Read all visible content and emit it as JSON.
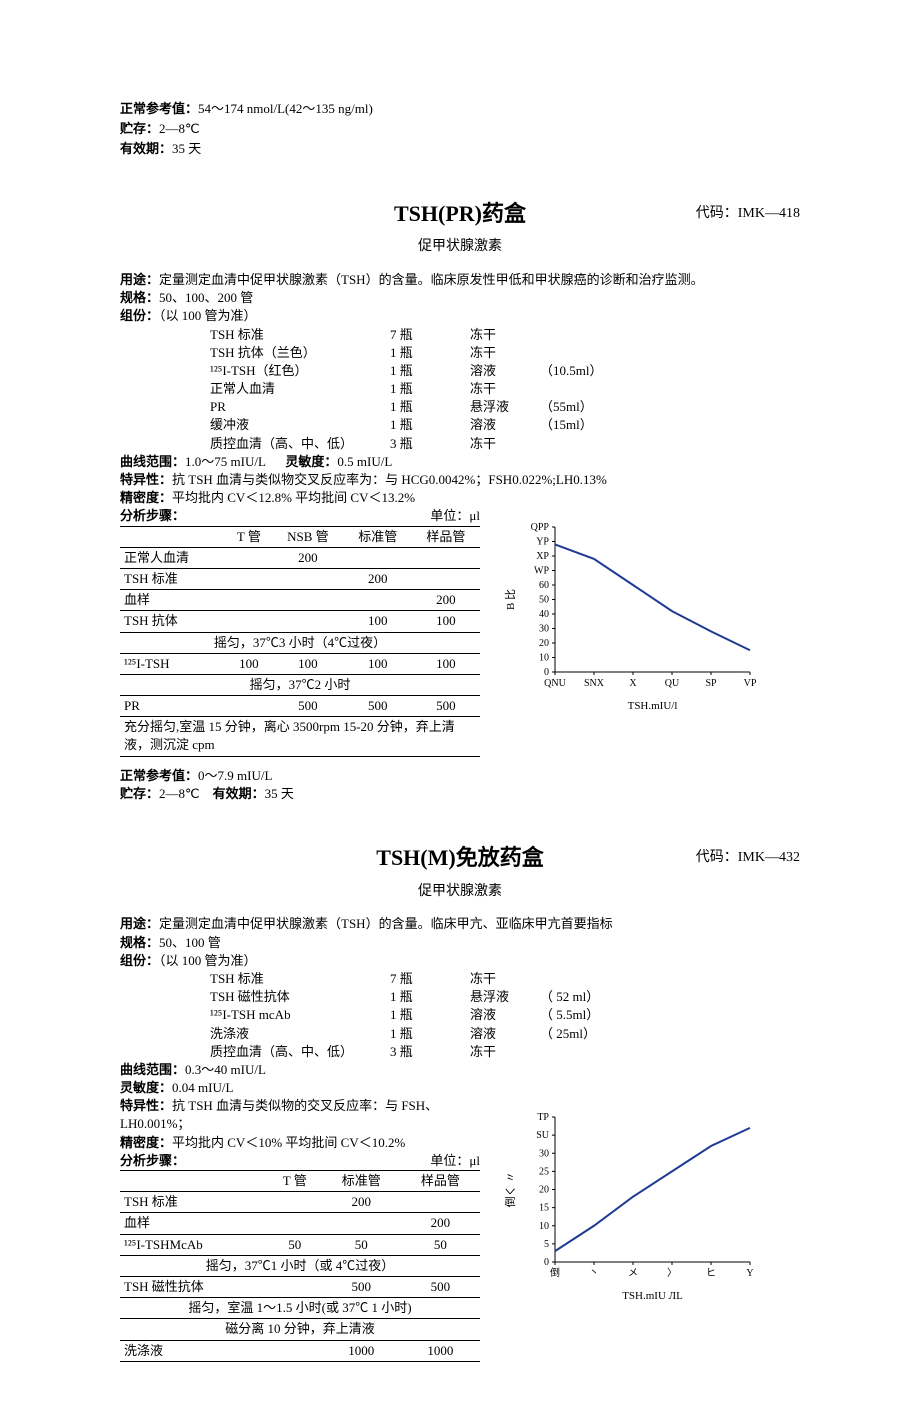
{
  "top_meta": {
    "ref_label": "正常参考值：",
    "ref_value": "54～174 nmol/L(42～135 ng/ml)",
    "storage_label": "贮存：",
    "storage_value": "2—8℃",
    "expiry_label": "有效期：",
    "expiry_value": "35 天"
  },
  "section1": {
    "title": "TSH(PR)药盒",
    "code_label": "代码：",
    "code": "IMK—418",
    "subtitle": "促甲状腺激素",
    "usage_label": "用途：",
    "usage": "定量测定血清中促甲状腺激素（TSH）的含量。临床原发性甲低和甲状腺癌的诊断和治疗监测。",
    "spec_label": "规格：",
    "spec": "50、100、200 管",
    "comp_label": "组份：",
    "comp_note": "（以 100 管为准）",
    "components": [
      {
        "name": "TSH 标准",
        "qty": "7 瓶",
        "form": "冻干",
        "extra": ""
      },
      {
        "name": "TSH 抗体（兰色）",
        "qty": "1 瓶",
        "form": "冻干",
        "extra": ""
      },
      {
        "name": "¹²⁵I-TSH（红色）",
        "qty": "1 瓶",
        "form": "溶液",
        "extra": "（10.5ml）"
      },
      {
        "name": "正常人血清",
        "qty": "1 瓶",
        "form": "冻干",
        "extra": ""
      },
      {
        "name": "PR",
        "qty": "1 瓶",
        "form": "悬浮液",
        "extra": "（55ml）"
      },
      {
        "name": "缓冲液",
        "qty": "1 瓶",
        "form": "溶液",
        "extra": "（15ml）"
      },
      {
        "name": "质控血清（高、中、低）",
        "qty": "3 瓶",
        "form": "冻干",
        "extra": ""
      }
    ],
    "range_label": "曲线范围：",
    "range": "1.0～75 mIU/L",
    "sens_label": "灵敏度：",
    "sens": "0.5 mIU/L",
    "spec2_label": "特异性：",
    "spec2": "抗 TSH 血清与类似物交叉反应率为：与 HCG0.0042%；FSH0.022%;LH0.13%",
    "prec_label": "精密度：",
    "prec": "平均批内   CV＜12.8%        平均批间   CV＜13.2%",
    "steps_label": "分析步骤：",
    "steps_unit": "单位：μl",
    "table": {
      "headers": [
        "",
        "T 管",
        "NSB 管",
        "标准管",
        "样品管"
      ],
      "rows": [
        {
          "cells": [
            "正常人血清",
            "",
            "200",
            "",
            ""
          ],
          "bb": true
        },
        {
          "cells": [
            "TSH 标准",
            "",
            "",
            "200",
            ""
          ],
          "bb": true
        },
        {
          "cells": [
            "血样",
            "",
            "",
            "",
            "200"
          ],
          "bb": true
        },
        {
          "cells": [
            "TSH 抗体",
            "",
            "",
            "100",
            "100"
          ],
          "bb": true
        },
        {
          "cells": [
            "摇匀，37℃3 小时（4℃过夜）"
          ],
          "span": 5,
          "center": true,
          "bb": true
        },
        {
          "cells": [
            "¹²⁵I-TSH",
            "100",
            "100",
            "100",
            "100"
          ],
          "bb": true
        },
        {
          "cells": [
            "摇匀，37℃2 小时"
          ],
          "span": 5,
          "center": true,
          "bb": true
        },
        {
          "cells": [
            "PR",
            "",
            "500",
            "500",
            "500"
          ],
          "bb": true
        },
        {
          "cells": [
            "充分摇匀,室温 15 分钟，离心 3500rpm 15-20 分钟，弃上清液，测沉淀 cpm"
          ],
          "span": 5,
          "left": true,
          "bb": true
        }
      ]
    },
    "ref_label": "正常参考值：",
    "ref": "0～7.9 mIU/L",
    "storage_label": "贮存：",
    "storage": "2—8℃",
    "expiry_label": "有效期：",
    "expiry": "35 天",
    "chart": {
      "ylabel": "B 比",
      "yticks": [
        "QPP",
        "YP",
        "XP",
        "WP",
        "60",
        "50",
        "40",
        "30",
        "20",
        "10",
        "0"
      ],
      "yticks_num": [
        100,
        90,
        80,
        70,
        60,
        50,
        40,
        30,
        20,
        10,
        0
      ],
      "xticks": [
        "QNU",
        "SNX",
        "X",
        "QU",
        "SP",
        "VP"
      ],
      "xlabel": "TSH.mIU/l",
      "points": [
        [
          0,
          88
        ],
        [
          1,
          78
        ],
        [
          2,
          60
        ],
        [
          3,
          42
        ],
        [
          4,
          28
        ],
        [
          5,
          15
        ]
      ],
      "line_color": "#1f3a93",
      "line_width": 2,
      "bg": "#ffffff"
    }
  },
  "section2": {
    "title": "TSH(M)免放药盒",
    "code_label": "代码：",
    "code": "IMK—432",
    "subtitle": "促甲状腺激素",
    "usage_label": "用途：",
    "usage": "定量测定血清中促甲状腺激素（TSH）的含量。临床甲亢、亚临床甲亢首要指标",
    "spec_label": "规格：",
    "spec": "50、100 管",
    "comp_label": "组份：",
    "comp_note": "（以 100 管为准）",
    "components": [
      {
        "name": "TSH 标准",
        "qty": "7 瓶",
        "form": "冻干",
        "extra": ""
      },
      {
        "name": "TSH 磁性抗体",
        "qty": "1 瓶",
        "form": "悬浮液",
        "extra": "（ 52 ml）"
      },
      {
        "name": "¹²⁵I-TSH mcAb",
        "qty": "1 瓶",
        "form": "溶液",
        "extra": "（ 5.5ml）"
      },
      {
        "name": "洗涤液",
        "qty": "1 瓶",
        "form": "溶液",
        "extra": "（ 25ml）"
      },
      {
        "name": "质控血清（高、中、低）",
        "qty": "3 瓶",
        "form": "冻干",
        "extra": ""
      }
    ],
    "range_label": "曲线范围：",
    "range": "0.3～40 mIU/L",
    "sens_label": "灵敏度：",
    "sens": "0.04 mIU/L",
    "spec2_label": "特异性：",
    "spec2": "抗 TSH 血清与类似物的交叉反应率：与 FSH、LH0.001%；",
    "prec_label": "精密度：",
    "prec": "平均批内   CV＜10%       平均批间   CV＜10.2%",
    "steps_label": "分析步骤：",
    "steps_unit": "单位：μl",
    "table": {
      "headers": [
        "",
        "T 管",
        "标准管",
        "样品管"
      ],
      "rows": [
        {
          "cells": [
            "TSH 标准",
            "",
            "200",
            ""
          ],
          "bb": true
        },
        {
          "cells": [
            "血样",
            "",
            "",
            "200"
          ],
          "bb": true
        },
        {
          "cells": [
            "¹²⁵I-TSHMcAb",
            "50",
            "50",
            "50"
          ],
          "bb": true
        },
        {
          "cells": [
            "摇匀，37℃1 小时（或 4℃过夜）"
          ],
          "span": 4,
          "center": true,
          "bb": true
        },
        {
          "cells": [
            "TSH 磁性抗体",
            "",
            "500",
            "500"
          ],
          "bb": true
        },
        {
          "cells": [
            "摇匀，室温 1～1.5 小时(或 37℃ 1 小时)"
          ],
          "span": 4,
          "center": true,
          "bb": true
        },
        {
          "cells": [
            "磁分离 10 分钟，弃上清液"
          ],
          "span": 4,
          "center": true,
          "bb": true
        },
        {
          "cells": [
            "洗涤液",
            "",
            "1000",
            "1000"
          ],
          "bb": true
        }
      ]
    },
    "chart": {
      "ylabel": "倒く 〃",
      "yticks": [
        "TP",
        "SU",
        "30",
        "25",
        "20",
        "15",
        "10",
        "5",
        "0"
      ],
      "yticks_num": [
        40,
        35,
        30,
        25,
        20,
        15,
        10,
        5,
        0
      ],
      "xticks": [
        "倒",
        "丶",
        "メ",
        "〉",
        "ヒ",
        "Ү"
      ],
      "xlabel": "TSH.mIU ЛL",
      "points": [
        [
          0,
          3
        ],
        [
          1,
          10
        ],
        [
          2,
          18
        ],
        [
          3,
          25
        ],
        [
          4,
          32
        ],
        [
          5,
          37
        ]
      ],
      "line_color": "#1f3a93",
      "line_width": 2,
      "bg": "#ffffff"
    }
  }
}
